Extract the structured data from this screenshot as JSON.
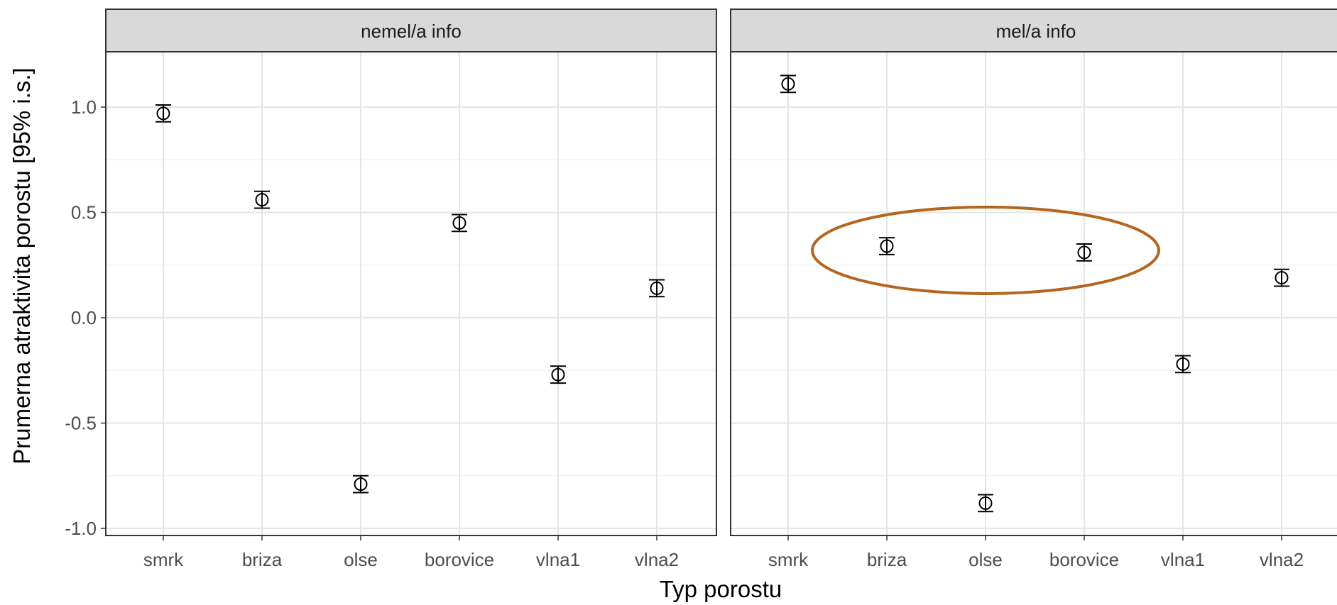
{
  "chart_data": {
    "type": "scatter",
    "subtype": "point-with-95ci-errorbars, faceted",
    "xlabel": "Typ porostu",
    "ylabel": "Prumerna atraktivita porostu [95% i.s.]",
    "categories": [
      "smrk",
      "briza",
      "olse",
      "borovice",
      "vlna1",
      "vlna2"
    ],
    "ylim": [
      -1.0,
      1.25
    ],
    "yticks": [
      -1.0,
      -0.5,
      0.0,
      0.5,
      1.0
    ],
    "ytick_labels": [
      "-1.0",
      "-0.5",
      "0.0",
      "0.5",
      "1.0"
    ],
    "grid": true,
    "panels": [
      {
        "title": "nemel/a info",
        "series": [
          {
            "values": [
              0.97,
              0.56,
              -0.79,
              0.45,
              -0.27,
              0.14
            ],
            "lower": [
              0.93,
              0.52,
              -0.83,
              0.41,
              -0.31,
              0.1
            ],
            "upper": [
              1.01,
              0.6,
              -0.75,
              0.49,
              -0.23,
              0.18
            ]
          }
        ],
        "highlight": null
      },
      {
        "title": "mel/a info",
        "series": [
          {
            "values": [
              1.11,
              0.34,
              -0.88,
              0.31,
              -0.22,
              0.19
            ],
            "lower": [
              1.07,
              0.3,
              -0.92,
              0.27,
              -0.26,
              0.15
            ],
            "upper": [
              1.15,
              0.38,
              -0.84,
              0.35,
              -0.18,
              0.23
            ]
          }
        ],
        "highlight": {
          "shape": "ellipse",
          "from": "briza",
          "to": "borovice",
          "around_value": 0.32,
          "color": "#b5651d"
        }
      }
    ]
  }
}
